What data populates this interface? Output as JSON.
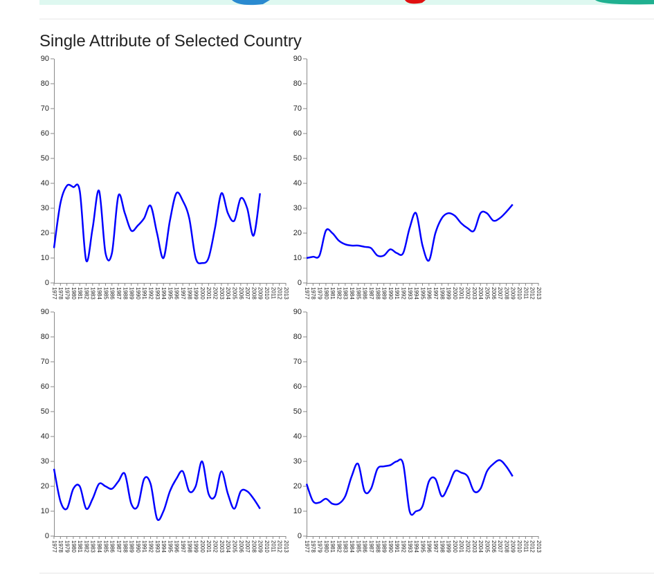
{
  "title": "Single Attribute of Selected Country",
  "chart_data": [
    {
      "type": "line",
      "x": [
        1977,
        1978,
        1979,
        1980,
        1981,
        1982,
        1983,
        1984,
        1985,
        1986,
        1987,
        1988,
        1989,
        1990,
        1991,
        1992,
        1993,
        1994,
        1995,
        1996,
        1997,
        1998,
        1999,
        2000,
        2001,
        2002,
        2003,
        2004,
        2005,
        2006,
        2007,
        2008,
        2009
      ],
      "values": [
        14,
        32,
        39,
        38.5,
        37,
        9,
        22,
        37,
        12,
        12,
        35,
        28,
        21,
        23,
        26,
        31,
        20,
        10,
        25,
        36,
        33,
        26,
        10,
        8,
        10,
        22,
        36,
        28,
        25,
        34,
        30,
        19,
        36
      ],
      "color": "#0000ff",
      "xlim": [
        1977,
        2013
      ],
      "xticks": [
        1977,
        1978,
        1979,
        1980,
        1981,
        1982,
        1983,
        1984,
        1985,
        1986,
        1987,
        1988,
        1989,
        1990,
        1991,
        1992,
        1993,
        1994,
        1995,
        1996,
        1997,
        1998,
        1999,
        2000,
        2001,
        2002,
        2003,
        2004,
        2005,
        2006,
        2007,
        2008,
        2009,
        2010,
        2011,
        2012,
        2013
      ],
      "ylim": [
        0,
        90
      ],
      "yticks": [
        0,
        10,
        20,
        30,
        40,
        50,
        60,
        70,
        80,
        90
      ]
    },
    {
      "type": "line",
      "x": [
        1977,
        1978,
        1979,
        1980,
        1981,
        1982,
        1983,
        1984,
        1985,
        1986,
        1987,
        1988,
        1989,
        1990,
        1991,
        1992,
        1993,
        1994,
        1995,
        1996,
        1997,
        1998,
        1999,
        2000,
        2001,
        2002,
        2003,
        2004,
        2005,
        2006,
        2007,
        2008,
        2009
      ],
      "values": [
        10,
        10.5,
        11,
        21,
        20,
        17,
        15.5,
        15,
        15,
        14.5,
        14,
        11,
        11,
        13.5,
        12,
        12,
        22,
        28,
        15,
        9,
        20,
        26,
        28,
        27,
        24,
        22,
        21,
        28,
        28,
        25,
        26,
        28.5,
        31.5
      ],
      "color": "#0000ff",
      "xlim": [
        1977,
        2013
      ],
      "xticks": [
        1977,
        1978,
        1979,
        1980,
        1981,
        1982,
        1983,
        1984,
        1985,
        1986,
        1987,
        1988,
        1989,
        1990,
        1991,
        1992,
        1993,
        1994,
        1995,
        1996,
        1997,
        1998,
        1999,
        2000,
        2001,
        2002,
        2003,
        2004,
        2005,
        2006,
        2007,
        2008,
        2009,
        2010,
        2011,
        2012,
        2013
      ],
      "ylim": [
        0,
        90
      ],
      "yticks": [
        0,
        10,
        20,
        30,
        40,
        50,
        60,
        70,
        80,
        90
      ]
    },
    {
      "type": "line",
      "x": [
        1977,
        1978,
        1979,
        1980,
        1981,
        1982,
        1983,
        1984,
        1985,
        1986,
        1987,
        1988,
        1989,
        1990,
        1991,
        1992,
        1993,
        1994,
        1995,
        1996,
        1997,
        1998,
        1999,
        2000,
        2001,
        2002,
        2003,
        2004,
        2005,
        2006,
        2007,
        2008,
        2009
      ],
      "values": [
        27,
        14,
        11,
        19,
        20,
        11,
        15,
        21,
        20,
        19,
        22,
        25,
        13,
        12,
        23,
        21,
        7,
        10,
        18,
        23,
        26,
        18,
        20,
        30,
        17,
        16,
        26,
        17,
        11,
        18,
        18,
        15,
        11
      ],
      "color": "#0000ff",
      "xlim": [
        1977,
        2013
      ],
      "xticks": [
        1977,
        1978,
        1979,
        1980,
        1981,
        1982,
        1983,
        1984,
        1985,
        1986,
        1987,
        1988,
        1989,
        1990,
        1991,
        1992,
        1993,
        1994,
        1995,
        1996,
        1997,
        1998,
        1999,
        2000,
        2001,
        2002,
        2003,
        2004,
        2005,
        2006,
        2007,
        2008,
        2009,
        2010,
        2011,
        2012,
        2013
      ],
      "ylim": [
        0,
        90
      ],
      "yticks": [
        0,
        10,
        20,
        30,
        40,
        50,
        60,
        70,
        80,
        90
      ]
    },
    {
      "type": "line",
      "x": [
        1977,
        1978,
        1979,
        1980,
        1981,
        1982,
        1983,
        1984,
        1985,
        1986,
        1987,
        1988,
        1989,
        1990,
        1991,
        1992,
        1993,
        1994,
        1995,
        1996,
        1997,
        1998,
        1999,
        2000,
        2001,
        2002,
        2003,
        2004,
        2005,
        2006,
        2007,
        2008,
        2009
      ],
      "values": [
        21,
        14,
        13.5,
        15,
        13,
        13,
        16,
        24,
        29,
        18,
        19,
        27,
        28,
        28.5,
        30,
        29,
        10,
        10,
        12,
        22,
        23,
        16,
        20,
        26,
        25.5,
        24,
        18,
        19,
        26,
        29,
        30.5,
        28,
        24
      ],
      "color": "#0000ff",
      "xlim": [
        1977,
        2013
      ],
      "xticks": [
        1977,
        1978,
        1979,
        1980,
        1981,
        1982,
        1983,
        1984,
        1985,
        1986,
        1987,
        1988,
        1989,
        1990,
        1991,
        1992,
        1993,
        1994,
        1995,
        1996,
        1997,
        1998,
        1999,
        2000,
        2001,
        2002,
        2003,
        2004,
        2005,
        2006,
        2007,
        2008,
        2009,
        2010,
        2011,
        2012,
        2013
      ],
      "ylim": [
        0,
        90
      ],
      "yticks": [
        0,
        10,
        20,
        30,
        40,
        50,
        60,
        70,
        80,
        90
      ]
    }
  ]
}
